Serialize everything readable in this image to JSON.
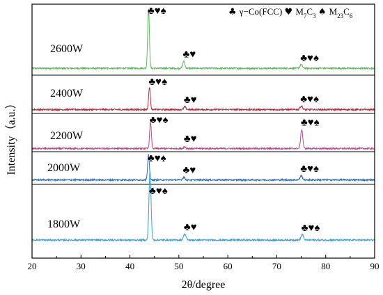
{
  "chart_data": {
    "type": "line",
    "xlabel": "2θ/degree",
    "ylabel": "Intensity（a.u.）",
    "xlim": [
      20,
      90
    ],
    "x_ticks": [
      20,
      30,
      40,
      50,
      60,
      70,
      80,
      90
    ],
    "y_ticks_shown": false,
    "stacked_panels": true,
    "legend": {
      "placement": "top-right",
      "entries": [
        {
          "symbol": "♣",
          "text": "γ−Co(FCC)",
          "subscripts": []
        },
        {
          "symbol": "♥",
          "text": "M7C3",
          "subscripts": [
            [
              "M",
              ""
            ],
            [
              "C",
              "3"
            ]
          ],
          "base": "M",
          "parts": [
            "M",
            "7",
            "C",
            "3"
          ]
        },
        {
          "symbol": "♠",
          "text": "M23C6",
          "parts": [
            "M",
            "23",
            "C",
            "6"
          ]
        }
      ]
    },
    "series": [
      {
        "name": "2600W",
        "color": "#5cb85c",
        "baseline": 0.02,
        "peaks": [
          {
            "x": 43.8,
            "height": 1.0,
            "width": 0.25,
            "markers": "♣♥♠"
          },
          {
            "x": 51.0,
            "height": 0.12,
            "width": 0.3,
            "markers": "♣♥"
          },
          {
            "x": 75.0,
            "height": 0.06,
            "width": 0.35,
            "markers": "♣♥♠"
          }
        ]
      },
      {
        "name": "2400W",
        "color": "#c0283a",
        "baseline": 0.02,
        "peaks": [
          {
            "x": 44.0,
            "height": 0.65,
            "width": 0.25,
            "markers": "♣♥♠"
          },
          {
            "x": 51.2,
            "height": 0.08,
            "width": 0.3,
            "markers": "♣♥"
          },
          {
            "x": 75.0,
            "height": 0.1,
            "width": 0.35,
            "markers": "♣♥♠"
          }
        ]
      },
      {
        "name": "2200W",
        "color": "#c0468a",
        "baseline": 0.02,
        "peaks": [
          {
            "x": 44.2,
            "height": 0.75,
            "width": 0.25,
            "markers": "♣♥♠"
          },
          {
            "x": 51.2,
            "height": 0.05,
            "width": 0.3,
            "markers": "♣♥"
          },
          {
            "x": 75.1,
            "height": 0.55,
            "width": 0.3,
            "markers": "♣♥♠"
          }
        ]
      },
      {
        "name": "2000W",
        "color": "#2e6fb8",
        "baseline": 0.02,
        "peaks": [
          {
            "x": 43.8,
            "height": 0.9,
            "width": 0.25,
            "markers": "♣♥♠"
          },
          {
            "x": 51.0,
            "height": 0.1,
            "width": 0.3,
            "markers": "♣♥"
          },
          {
            "x": 75.0,
            "height": 0.15,
            "width": 0.35,
            "markers": "♣♥♠"
          }
        ]
      },
      {
        "name": "1800W",
        "color": "#3aa0d8",
        "baseline": 0.02,
        "peaks": [
          {
            "x": 44.1,
            "height": 1.0,
            "width": 0.3,
            "markers": "♣♥♠"
          },
          {
            "x": 51.2,
            "height": 0.09,
            "width": 0.35,
            "markers": "♣♥"
          },
          {
            "x": 75.2,
            "height": 0.08,
            "width": 0.35,
            "markers": "♣♥♠"
          }
        ]
      }
    ]
  }
}
